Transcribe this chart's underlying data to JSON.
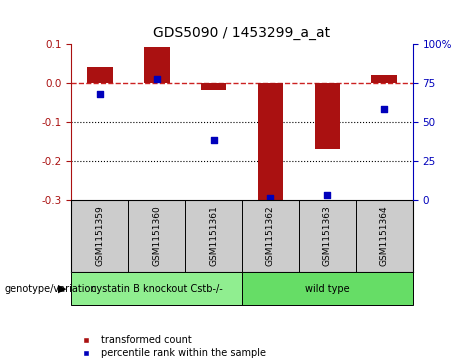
{
  "title": "GDS5090 / 1453299_a_at",
  "samples": [
    "GSM1151359",
    "GSM1151360",
    "GSM1151361",
    "GSM1151362",
    "GSM1151363",
    "GSM1151364"
  ],
  "red_bars": [
    0.04,
    0.09,
    -0.02,
    -0.3,
    -0.17,
    0.02
  ],
  "blue_dots_pct": [
    68,
    77,
    38,
    1,
    3,
    58
  ],
  "ylim_left": [
    -0.3,
    0.1
  ],
  "ylim_right": [
    0,
    100
  ],
  "yticks_left": [
    0.1,
    0.0,
    -0.1,
    -0.2,
    -0.3
  ],
  "yticks_right": [
    100,
    75,
    50,
    25,
    0
  ],
  "groups": [
    {
      "label": "cystatin B knockout Cstb-/-",
      "indices": [
        0,
        1,
        2
      ],
      "color": "#90EE90"
    },
    {
      "label": "wild type",
      "indices": [
        3,
        4,
        5
      ],
      "color": "#66DD66"
    }
  ],
  "bar_color": "#AA1111",
  "dot_color": "#0000BB",
  "zero_line_color": "#CC2222",
  "dotted_line_color": "#000000",
  "background_color": "#FFFFFF",
  "sample_box_color": "#CCCCCC",
  "title_fontsize": 10,
  "tick_fontsize": 7.5,
  "sample_fontsize": 6.5,
  "group_fontsize": 7,
  "legend_fontsize": 7,
  "bar_width": 0.45,
  "dot_size": 22,
  "legend_label_red": "transformed count",
  "legend_label_blue": "percentile rank within the sample",
  "genotype_label": "genotype/variation"
}
